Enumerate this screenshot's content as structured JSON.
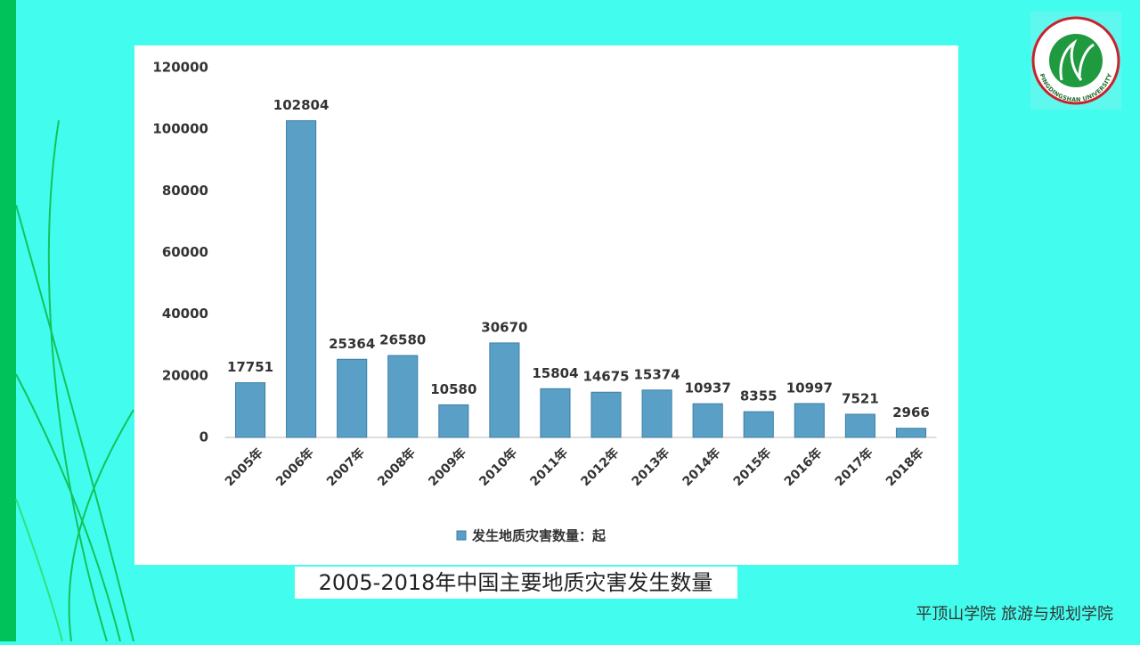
{
  "chart_data": {
    "type": "bar",
    "categories": [
      "2005年",
      "2006年",
      "2007年",
      "2008年",
      "2009年",
      "2010年",
      "2011年",
      "2012年",
      "2013年",
      "2014年",
      "2015年",
      "2016年",
      "2017年",
      "2018年"
    ],
    "series": [
      {
        "name": "发生地质灾害数量：起",
        "color": "#5a9fc6",
        "values": [
          17751,
          102804,
          25364,
          26580,
          10580,
          30670,
          15804,
          14675,
          15374,
          10937,
          8355,
          10997,
          7521,
          2966
        ]
      }
    ],
    "ylim": [
      0,
      120000
    ],
    "yticks": [
      0,
      20000,
      40000,
      60000,
      80000,
      100000,
      120000
    ],
    "grid": false,
    "legend": "bottom"
  },
  "caption": "2005-2018年中国主要地质灾害发生数量",
  "footer": "平顶山学院  旅游与规划学院",
  "logo": "PINGDINGSHAN UNIVERSITY"
}
